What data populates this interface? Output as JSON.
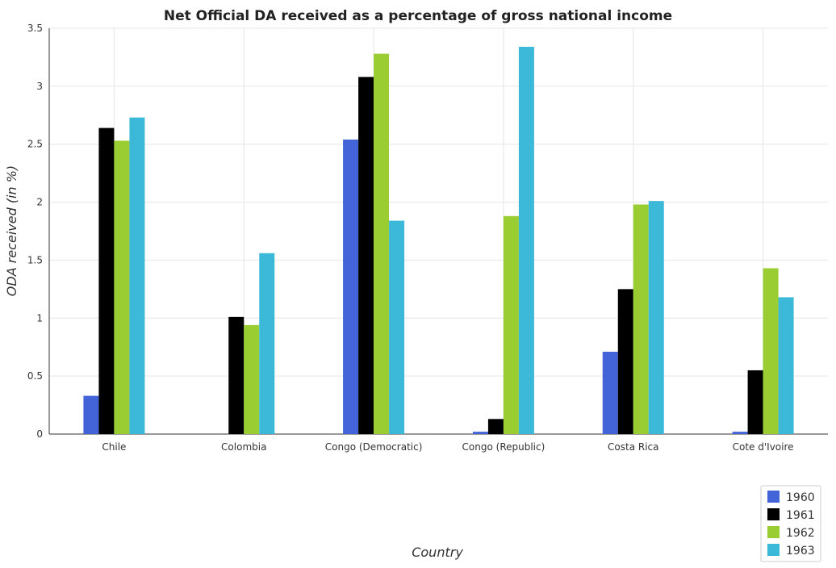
{
  "chart_data": {
    "type": "bar",
    "title": "Net Official DA received as a percentage of gross national income",
    "xlabel": "Country",
    "ylabel": "ODA received (in %)",
    "ylim": [
      0,
      3.5
    ],
    "yticks": [
      0,
      0.5,
      1,
      1.5,
      2,
      2.5,
      3,
      3.5
    ],
    "ytick_labels": [
      "0",
      "0.5",
      "1",
      "1.5",
      "2",
      "2.5",
      "3",
      "3.5"
    ],
    "grid": true,
    "legend_position": "bottom-right",
    "categories": [
      "Chile",
      "Colombia",
      "Congo (Democratic)",
      "Congo (Republic)",
      "Costa Rica",
      "Cote d'Ivoire"
    ],
    "series": [
      {
        "name": "1960",
        "color": "#4363d8",
        "values": [
          0.33,
          0,
          2.54,
          0.02,
          0.71,
          0.02
        ]
      },
      {
        "name": "1961",
        "color": "#000000",
        "values": [
          2.64,
          1.01,
          3.08,
          0.13,
          1.25,
          0.55
        ]
      },
      {
        "name": "1962",
        "color": "#9acd32",
        "values": [
          2.53,
          0.94,
          3.28,
          1.88,
          1.98,
          1.43
        ]
      },
      {
        "name": "1963",
        "color": "#3cb8d8",
        "values": [
          2.73,
          1.56,
          1.84,
          3.34,
          2.01,
          1.18
        ]
      }
    ]
  }
}
